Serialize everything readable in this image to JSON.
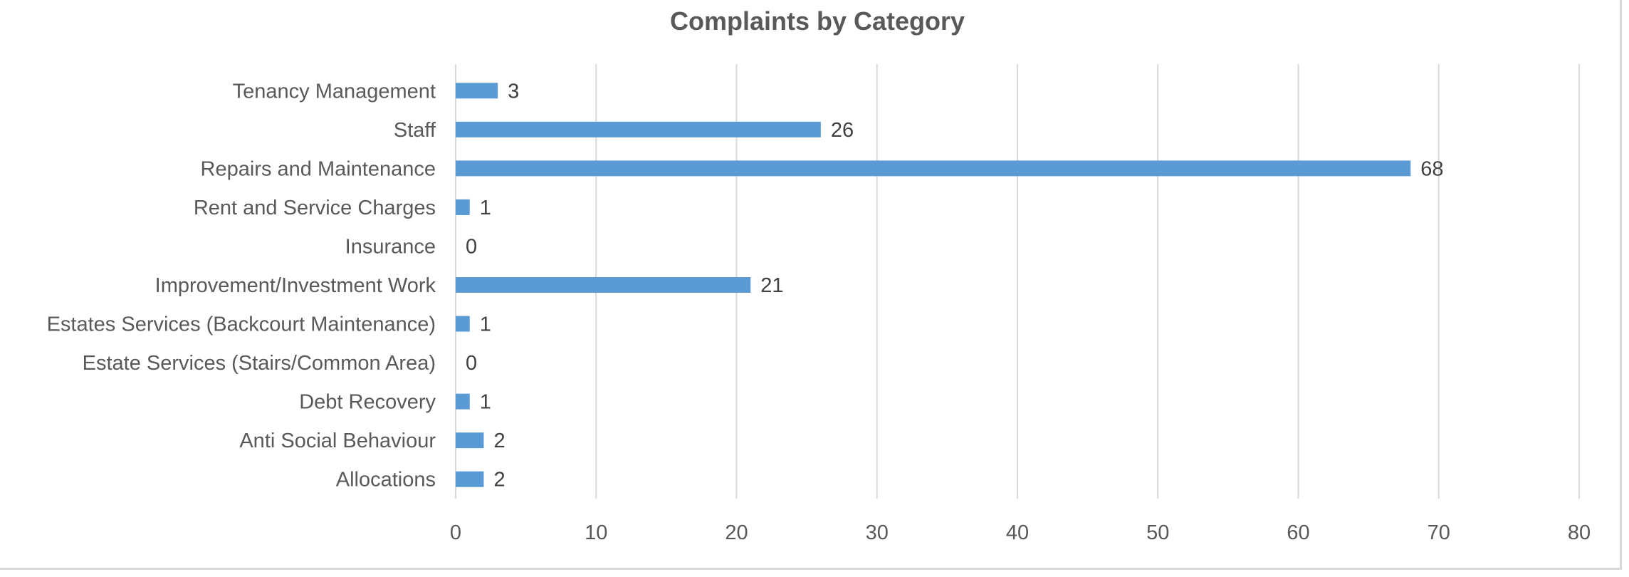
{
  "chart_data": {
    "type": "bar",
    "orientation": "horizontal",
    "title": "Complaints by Category",
    "xlabel": "",
    "ylabel": "",
    "categories": [
      "Tenancy Management",
      "Staff",
      "Repairs and Maintenance",
      "Rent and Service Charges",
      "Insurance",
      "Improvement/Investment Work",
      "Estates Services (Backcourt Maintenance)",
      "Estate Services (Stairs/Common Area)",
      "Debt Recovery",
      "Anti Social Behaviour",
      "Allocations"
    ],
    "values": [
      3,
      26,
      68,
      1,
      0,
      21,
      1,
      0,
      1,
      2,
      2
    ],
    "xlim": [
      0,
      80
    ],
    "xticks": [
      0,
      10,
      20,
      30,
      40,
      50,
      60,
      70,
      80
    ],
    "grid": "vertical",
    "legend": "none",
    "bar_color": "#5b9bd5",
    "data_labels": true
  }
}
